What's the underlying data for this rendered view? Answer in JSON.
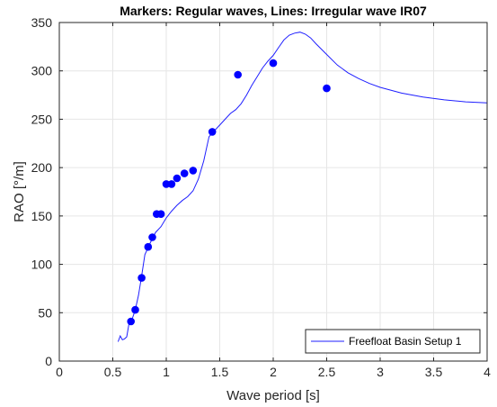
{
  "chart_data": {
    "type": "scatter",
    "title": "Markers: Regular waves, Lines: Irregular wave IR07",
    "xlabel": "Wave period [s]",
    "ylabel": "RAO [°/m]",
    "xlim": [
      0,
      4
    ],
    "ylim": [
      0,
      350
    ],
    "xticks": [
      0,
      0.5,
      1,
      1.5,
      2,
      2.5,
      3,
      3.5,
      4
    ],
    "xtick_labels": [
      "0",
      "0.5",
      "1",
      "1.5",
      "2",
      "2.5",
      "3",
      "3.5",
      "4"
    ],
    "yticks": [
      0,
      50,
      100,
      150,
      200,
      250,
      300,
      350
    ],
    "ytick_labels": [
      "0",
      "50",
      "100",
      "150",
      "200",
      "250",
      "300",
      "350"
    ],
    "grid": true,
    "legend_position": "bottom-right",
    "colors": {
      "series": "#1f1fff",
      "markers": "#0000ff"
    },
    "markers": {
      "x": [
        0.67,
        0.71,
        0.77,
        0.83,
        0.87,
        0.91,
        0.95,
        1.0,
        1.05,
        1.1,
        1.17,
        1.25,
        1.43,
        1.67,
        2.0,
        2.5
      ],
      "y": [
        41,
        53,
        86,
        118,
        128,
        152,
        152,
        183,
        183,
        189,
        194,
        197,
        237,
        296,
        308,
        282
      ]
    },
    "series": [
      {
        "name": "Freefloat Basin Setup 1",
        "x": [
          0.55,
          0.57,
          0.59,
          0.61,
          0.63,
          0.65,
          0.68,
          0.71,
          0.74,
          0.77,
          0.8,
          0.85,
          0.9,
          0.95,
          1.0,
          1.05,
          1.1,
          1.15,
          1.2,
          1.25,
          1.3,
          1.35,
          1.4,
          1.45,
          1.5,
          1.55,
          1.6,
          1.65,
          1.7,
          1.75,
          1.8,
          1.85,
          1.9,
          1.95,
          2.0,
          2.05,
          2.1,
          2.15,
          2.2,
          2.25,
          2.3,
          2.35,
          2.4,
          2.5,
          2.6,
          2.7,
          2.8,
          2.9,
          3.0,
          3.2,
          3.4,
          3.6,
          3.8,
          4.0
        ],
        "y": [
          20,
          26,
          22,
          23,
          25,
          38,
          43,
          53,
          68,
          88,
          110,
          122,
          133,
          139,
          148,
          155,
          161,
          166,
          170,
          176,
          188,
          207,
          232,
          238,
          244,
          250,
          256,
          260,
          266,
          275,
          285,
          294,
          303,
          310,
          316,
          324,
          332,
          337,
          339,
          340,
          338,
          334,
          328,
          317,
          306,
          298,
          292,
          287,
          283,
          277,
          273,
          270,
          268,
          267
        ]
      }
    ]
  }
}
